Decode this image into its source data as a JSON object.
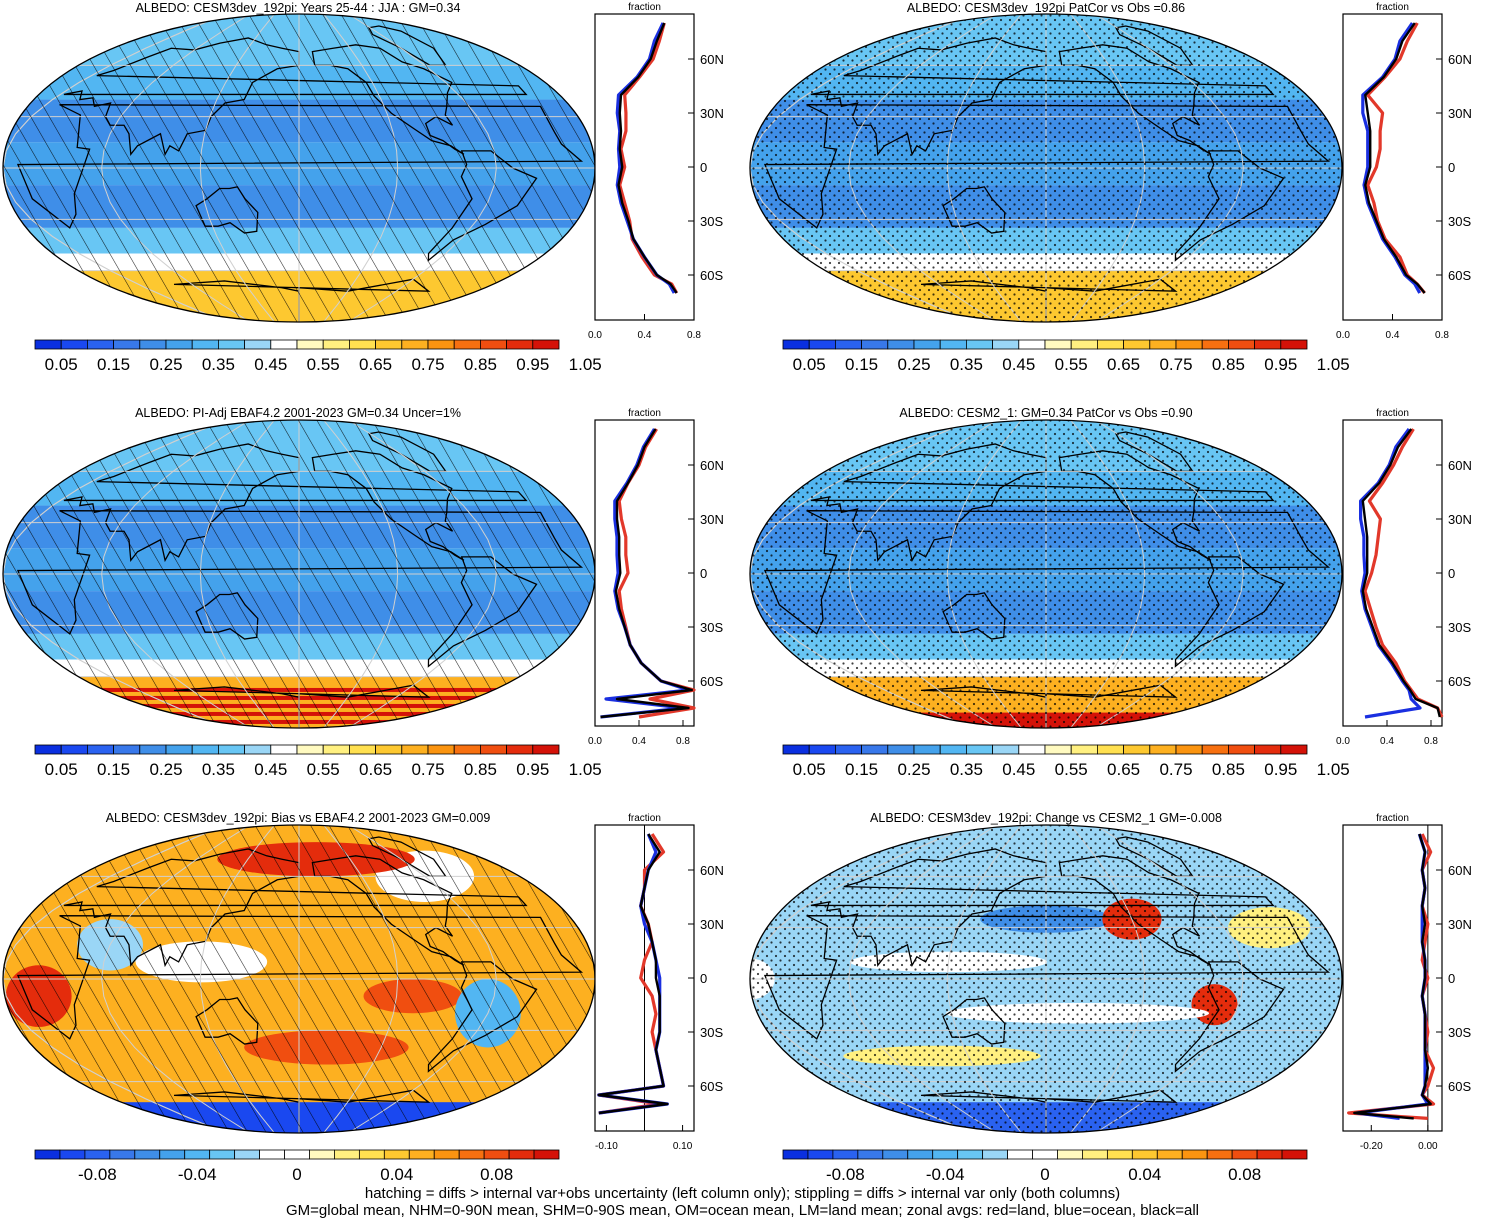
{
  "colors": {
    "albedo_scale": [
      "#0a2fe0",
      "#1a48f0",
      "#2a62f0",
      "#3878ea",
      "#3f8ee8",
      "#44a2ec",
      "#52b6f2",
      "#68c6f4",
      "#9ad6f6",
      "#ffffff",
      "#fffac0",
      "#fff080",
      "#ffe050",
      "#fdc830",
      "#fdb020",
      "#fb9410",
      "#f77010",
      "#f04e10",
      "#e42c0c",
      "#d41208"
    ],
    "diff_scale": [
      "#0a2fe0",
      "#1a48f0",
      "#2a62f0",
      "#3878ea",
      "#3f8ee8",
      "#44a2ec",
      "#52b6f2",
      "#68c6f4",
      "#9ad6f6",
      "#ffffff",
      "#ffffff",
      "#fffac0",
      "#fff080",
      "#ffe050",
      "#fdc830",
      "#fdb020",
      "#fb9410",
      "#f77010",
      "#f04e10",
      "#e42c0c",
      "#d41208"
    ],
    "land": "#e2382a",
    "ocean": "#1a2fe0",
    "all": "#000000"
  },
  "latitude_ticks": [
    "60N",
    "30N",
    "0",
    "30S",
    "60S"
  ],
  "zonal_axis_label": "fraction",
  "footer": {
    "line1": "hatching = diffs > internal var+obs uncertainty (left column only); stippling = diffs > internal var only (both columns)",
    "line2": "GM=global mean, NHM=0-90N mean, SHM=0-90S mean, OM=ocean mean, LM=land mean; zonal avgs: red=land, blue=ocean, black=all"
  },
  "chart_data": [
    {
      "type": "heatmap",
      "title": "ALBEDO: CESM3dev_192pi: Years 25-44 : JJA : GM=0.34",
      "colorbar_labels": [
        "0.05",
        "0.15",
        "0.25",
        "0.35",
        "0.45",
        "0.55",
        "0.65",
        "0.75",
        "0.85",
        "0.95",
        "1.05"
      ],
      "overlay": "hatching",
      "zonal": {
        "xlim": [
          0,
          0.8
        ],
        "xticks": [
          "0.0",
          "0.4",
          "0.8"
        ],
        "lat": [
          80,
          70,
          60,
          50,
          40,
          30,
          20,
          10,
          0,
          -10,
          -20,
          -30,
          -40,
          -50,
          -60,
          -65,
          -70
        ],
        "land": [
          0.56,
          0.52,
          0.47,
          0.36,
          0.24,
          0.25,
          0.25,
          0.21,
          0.24,
          0.2,
          0.24,
          0.28,
          0.3,
          0.38,
          0.48,
          0.62,
          0.66
        ],
        "ocean": [
          0.55,
          0.48,
          0.44,
          0.34,
          0.19,
          0.18,
          0.2,
          0.19,
          0.2,
          0.18,
          0.21,
          0.26,
          0.31,
          0.4,
          0.5,
          0.6,
          0.64
        ],
        "all": [
          0.56,
          0.5,
          0.45,
          0.35,
          0.21,
          0.2,
          0.21,
          0.2,
          0.22,
          0.19,
          0.22,
          0.27,
          0.31,
          0.4,
          0.5,
          0.61,
          0.66
        ]
      }
    },
    {
      "type": "heatmap",
      "title": "ALBEDO: CESM3dev_192pi PatCor vs Obs =0.86",
      "colorbar_labels": [
        "0.05",
        "0.15",
        "0.25",
        "0.35",
        "0.45",
        "0.55",
        "0.65",
        "0.75",
        "0.85",
        "0.95",
        "1.05"
      ],
      "overlay": "stippling",
      "zonal": {
        "xlim": [
          0,
          0.8
        ],
        "xticks": [
          "0.0",
          "0.4",
          "0.8"
        ],
        "lat": [
          80,
          70,
          60,
          50,
          40,
          30,
          20,
          10,
          0,
          -10,
          -20,
          -30,
          -40,
          -50,
          -60,
          -65,
          -70
        ],
        "land": [
          0.6,
          0.52,
          0.46,
          0.34,
          0.2,
          0.32,
          0.3,
          0.3,
          0.27,
          0.2,
          0.25,
          0.28,
          0.34,
          0.46,
          0.52,
          0.6,
          0.66
        ],
        "ocean": [
          0.56,
          0.46,
          0.42,
          0.32,
          0.16,
          0.16,
          0.2,
          0.2,
          0.2,
          0.17,
          0.2,
          0.26,
          0.32,
          0.42,
          0.5,
          0.58,
          0.62
        ],
        "all": [
          0.58,
          0.48,
          0.43,
          0.33,
          0.18,
          0.2,
          0.22,
          0.22,
          0.22,
          0.18,
          0.21,
          0.27,
          0.33,
          0.43,
          0.51,
          0.6,
          0.66
        ]
      }
    },
    {
      "type": "heatmap",
      "title": "ALBEDO: PI-Adj EBAF4.2 2001-2023 GM=0.34 Uncer=1%",
      "colorbar_labels": [
        "0.05",
        "0.15",
        "0.25",
        "0.35",
        "0.45",
        "0.55",
        "0.65",
        "0.75",
        "0.85",
        "0.95",
        "1.05"
      ],
      "overlay": "hatching",
      "zonal": {
        "xlim": [
          0,
          0.9
        ],
        "xticks": [
          "0.0",
          "0.4",
          "0.8"
        ],
        "lat": [
          80,
          70,
          60,
          50,
          40,
          30,
          20,
          10,
          0,
          -10,
          -20,
          -30,
          -40,
          -50,
          -60,
          -65,
          -70,
          -75,
          -80
        ],
        "land": [
          0.56,
          0.46,
          0.4,
          0.3,
          0.22,
          0.24,
          0.28,
          0.28,
          0.3,
          0.22,
          0.24,
          0.28,
          0.32,
          0.42,
          0.6,
          0.9,
          0.5,
          0.9,
          0.4
        ],
        "ocean": [
          0.54,
          0.44,
          0.38,
          0.29,
          0.18,
          0.18,
          0.2,
          0.2,
          0.21,
          0.18,
          0.21,
          0.27,
          0.32,
          0.42,
          0.6,
          0.85,
          0.1,
          0.8,
          0.05
        ],
        "all": [
          0.55,
          0.45,
          0.39,
          0.3,
          0.2,
          0.2,
          0.22,
          0.22,
          0.23,
          0.19,
          0.22,
          0.27,
          0.32,
          0.42,
          0.6,
          0.88,
          0.2,
          0.85,
          0.05
        ]
      }
    },
    {
      "type": "heatmap",
      "title": "ALBEDO: CESM2_1: GM=0.34 PatCor vs Obs =0.90",
      "colorbar_labels": [
        "0.05",
        "0.15",
        "0.25",
        "0.35",
        "0.45",
        "0.55",
        "0.65",
        "0.75",
        "0.85",
        "0.95",
        "1.05"
      ],
      "overlay": "stippling",
      "zonal": {
        "xlim": [
          0,
          0.9
        ],
        "xticks": [
          "0.0",
          "0.4",
          "0.8"
        ],
        "lat": [
          80,
          70,
          60,
          50,
          40,
          30,
          20,
          10,
          0,
          -10,
          -20,
          -30,
          -40,
          -50,
          -60,
          -65,
          -70,
          -75,
          -80
        ],
        "land": [
          0.64,
          0.54,
          0.46,
          0.36,
          0.24,
          0.34,
          0.32,
          0.3,
          0.26,
          0.2,
          0.25,
          0.3,
          0.36,
          0.48,
          0.56,
          0.62,
          0.68,
          0.86,
          0.9
        ],
        "ocean": [
          0.6,
          0.48,
          0.42,
          0.32,
          0.16,
          0.16,
          0.19,
          0.19,
          0.2,
          0.17,
          0.2,
          0.26,
          0.32,
          0.44,
          0.54,
          0.6,
          0.62,
          0.7,
          0.2
        ],
        "all": [
          0.62,
          0.5,
          0.43,
          0.33,
          0.18,
          0.2,
          0.22,
          0.22,
          0.22,
          0.18,
          0.21,
          0.27,
          0.33,
          0.45,
          0.55,
          0.61,
          0.66,
          0.86,
          0.88
        ]
      }
    },
    {
      "type": "heatmap",
      "title": "ALBEDO: CESM3dev_192pi: Bias vs EBAF4.2 2001-2023 GM=0.009",
      "colorbar_labels": [
        "-0.08",
        "-0.04",
        "0",
        "0.04",
        "0.08"
      ],
      "overlay": "hatching",
      "zonal": {
        "xlim": [
          -0.13,
          0.13
        ],
        "xticks": [
          "-0.10",
          "0.10"
        ],
        "xtick_values": [
          -0.1,
          0.1
        ],
        "zero_line": true,
        "lat": [
          80,
          70,
          60,
          50,
          40,
          30,
          20,
          10,
          0,
          -10,
          -20,
          -30,
          -40,
          -50,
          -60,
          -65,
          -70,
          -75
        ],
        "land": [
          0.02,
          0.05,
          0.0,
          0.0,
          -0.01,
          0.01,
          0.02,
          0.0,
          -0.01,
          0.02,
          0.03,
          0.02,
          0.03,
          0.04,
          0.05,
          -0.12,
          0.04,
          -0.12
        ],
        "ocean": [
          0.01,
          0.03,
          0.01,
          0.0,
          -0.01,
          0.0,
          0.02,
          0.03,
          0.04,
          0.04,
          0.04,
          0.04,
          0.03,
          0.04,
          0.05,
          -0.12,
          0.06,
          -0.12
        ],
        "all": [
          0.01,
          0.04,
          0.01,
          0.0,
          -0.01,
          0.01,
          0.02,
          0.03,
          0.03,
          0.04,
          0.04,
          0.04,
          0.03,
          0.04,
          0.05,
          -0.12,
          0.06,
          -0.12
        ]
      }
    },
    {
      "type": "heatmap",
      "title": "ALBEDO: CESM3dev_192pi: Change vs CESM2_1 GM=-0.008",
      "colorbar_labels": [
        "-0.08",
        "-0.04",
        "0",
        "0.04",
        "0.08"
      ],
      "overlay": "stippling",
      "zonal": {
        "xlim": [
          -0.3,
          0.05
        ],
        "xticks": [
          "-0.20",
          "0.00"
        ],
        "xtick_values": [
          -0.2,
          0.0
        ],
        "zero_line": true,
        "lat": [
          80,
          70,
          60,
          50,
          40,
          30,
          20,
          10,
          0,
          -10,
          -20,
          -30,
          -40,
          -50,
          -60,
          -65,
          -70,
          -75,
          -78
        ],
        "land": [
          -0.02,
          0.01,
          -0.02,
          -0.01,
          -0.02,
          0.0,
          -0.01,
          -0.02,
          0.0,
          -0.02,
          -0.01,
          0.0,
          -0.01,
          0.02,
          0.0,
          -0.02,
          0.02,
          -0.28,
          0.0
        ],
        "ocean": [
          -0.03,
          -0.01,
          -0.02,
          -0.01,
          -0.02,
          -0.02,
          -0.02,
          -0.01,
          -0.01,
          -0.02,
          -0.01,
          -0.01,
          -0.01,
          -0.01,
          -0.01,
          -0.02,
          0.0,
          -0.25,
          -0.1
        ],
        "all": [
          -0.03,
          -0.01,
          -0.02,
          -0.01,
          -0.02,
          -0.01,
          -0.02,
          -0.01,
          -0.01,
          -0.02,
          -0.01,
          -0.01,
          -0.01,
          0.0,
          -0.01,
          -0.02,
          0.01,
          -0.26,
          -0.05
        ]
      }
    }
  ]
}
